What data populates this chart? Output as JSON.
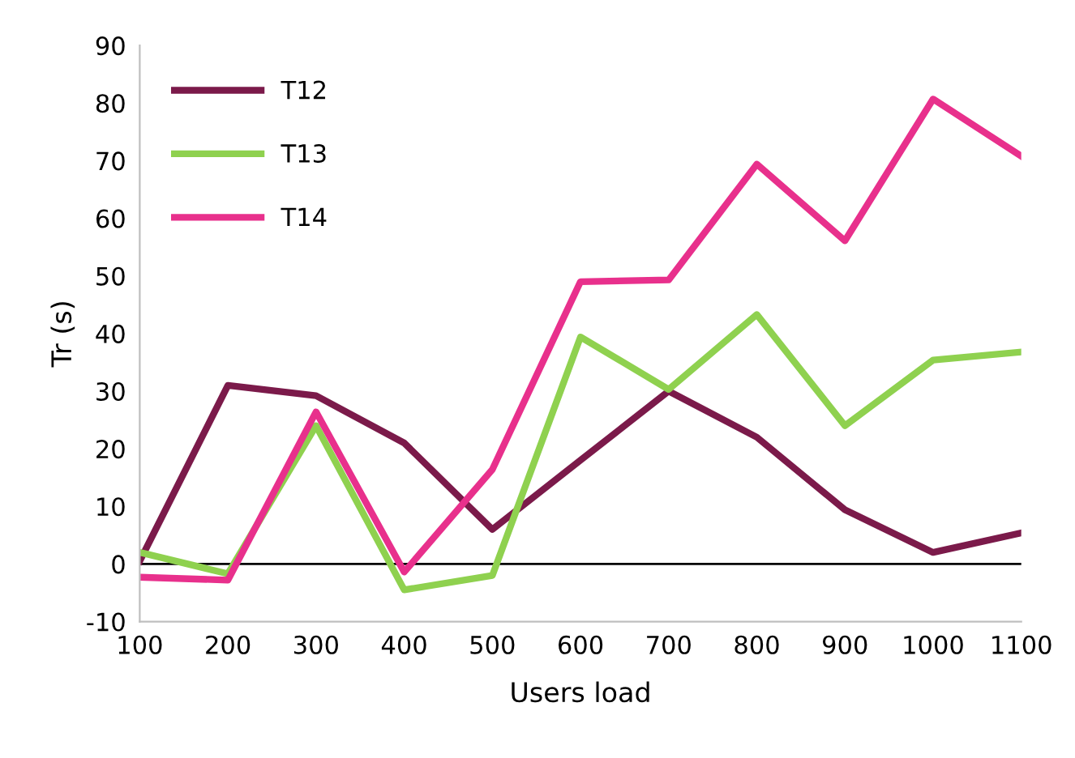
{
  "chart_data": {
    "type": "line",
    "xlabel": "Users load",
    "ylabel": "Tr (s)",
    "x": [
      100,
      200,
      300,
      400,
      500,
      600,
      700,
      800,
      900,
      1000,
      1100
    ],
    "series": [
      {
        "name": "T12",
        "color": "#7b1a4a",
        "values": [
          0.5,
          31,
          29.2,
          21,
          6,
          18,
          30,
          22,
          9.4,
          2,
          5.4
        ]
      },
      {
        "name": "T13",
        "color": "#8fd14f",
        "values": [
          2,
          -1.7,
          24,
          -4.5,
          -2,
          39.4,
          30.3,
          43.3,
          24,
          35.4,
          36.8
        ]
      },
      {
        "name": "T14",
        "color": "#e8308c",
        "values": [
          -2.3,
          -2.8,
          26.4,
          -1.4,
          16.4,
          49,
          49.3,
          69.4,
          56.1,
          80.7,
          70.8
        ]
      }
    ],
    "xlim": [
      100,
      1100
    ],
    "xticks": [
      100,
      200,
      300,
      400,
      500,
      600,
      700,
      800,
      900,
      1000,
      1100
    ],
    "ylim": [
      -10,
      90
    ],
    "yticks": [
      -10,
      0,
      10,
      20,
      30,
      40,
      50,
      60,
      70,
      80,
      90
    ],
    "ref_lines": [
      {
        "axis": "y",
        "value": 0,
        "label": null,
        "color": "#000000"
      }
    ],
    "grid": false,
    "legend": "top left",
    "marker": "none",
    "line_style": "solid"
  }
}
